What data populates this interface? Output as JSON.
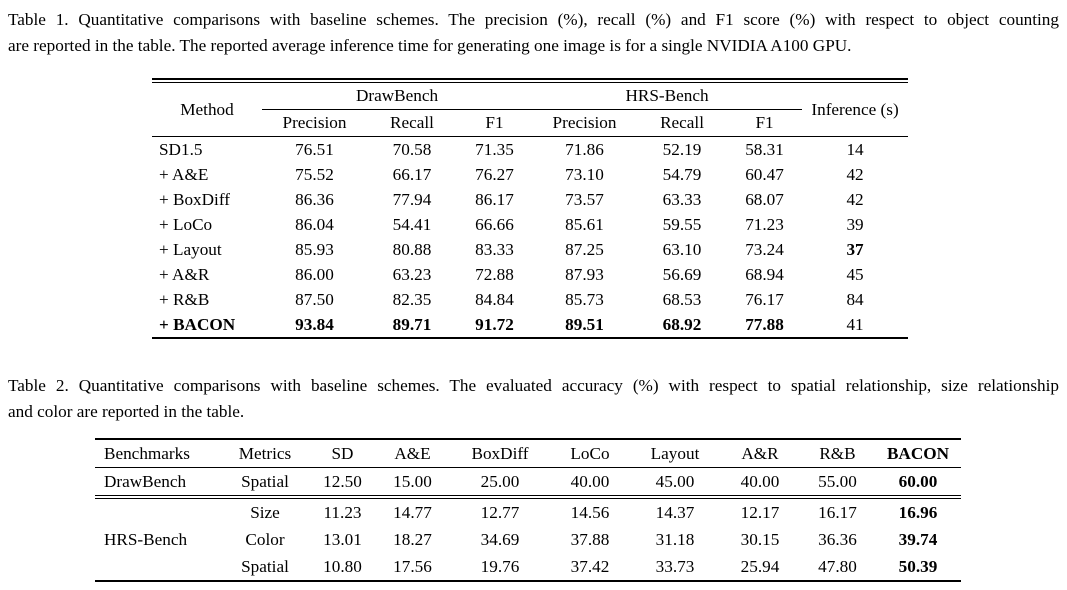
{
  "page": {
    "background": "#ffffff",
    "text_color": "#000000"
  },
  "table1": {
    "caption": {
      "full": "Table 1. Quantitative comparisons with baseline schemes. The precision (%), recall (%) and F1 score (%) with respect to object counting are reported in the table. The reported average inference time for generating one image is for a single NVIDIA A100 GPU.",
      "line1": "Table 1. Quantitative comparisons with baseline schemes. The precision (%), recall (%) and F1 score (%) with respect to object counting",
      "line2": "are reported in the table. The reported average inference time for generating one image is for a single NVIDIA A100 GPU."
    },
    "header": {
      "method": "Method",
      "groups": [
        {
          "label": "DrawBench",
          "cols": [
            "Precision",
            "Recall",
            "F1"
          ]
        },
        {
          "label": "HRS-Bench",
          "cols": [
            "Precision",
            "Recall",
            "F1"
          ]
        }
      ],
      "inference": "Inference (s)"
    },
    "rows": [
      {
        "method": "SD1.5",
        "method_bold": false,
        "values": [
          "76.51",
          "70.58",
          "71.35",
          "71.86",
          "52.19",
          "58.31",
          "14"
        ],
        "bold_values": []
      },
      {
        "method": "+ A&E",
        "method_bold": false,
        "values": [
          "75.52",
          "66.17",
          "76.27",
          "73.10",
          "54.79",
          "60.47",
          "42"
        ],
        "bold_values": []
      },
      {
        "method": "+ BoxDiff",
        "method_bold": false,
        "values": [
          "86.36",
          "77.94",
          "86.17",
          "73.57",
          "63.33",
          "68.07",
          "42"
        ],
        "bold_values": []
      },
      {
        "method": "+ LoCo",
        "method_bold": false,
        "values": [
          "86.04",
          "54.41",
          "66.66",
          "85.61",
          "59.55",
          "71.23",
          "39"
        ],
        "bold_values": []
      },
      {
        "method": "+ Layout",
        "method_bold": false,
        "values": [
          "85.93",
          "80.88",
          "83.33",
          "87.25",
          "63.10",
          "73.24",
          "37"
        ],
        "bold_values": [
          6
        ]
      },
      {
        "method": "+ A&R",
        "method_bold": false,
        "values": [
          "86.00",
          "63.23",
          "72.88",
          "87.93",
          "56.69",
          "68.94",
          "45"
        ],
        "bold_values": []
      },
      {
        "method": "+ R&B",
        "method_bold": false,
        "values": [
          "87.50",
          "82.35",
          "84.84",
          "85.73",
          "68.53",
          "76.17",
          "84"
        ],
        "bold_values": []
      },
      {
        "method": "+ BACON",
        "method_bold": true,
        "values": [
          "93.84",
          "89.71",
          "91.72",
          "89.51",
          "68.92",
          "77.88",
          "41"
        ],
        "bold_values": [
          0,
          1,
          2,
          3,
          4,
          5
        ]
      }
    ]
  },
  "table2": {
    "caption": {
      "full": "Table 2. Quantitative comparisons with baseline schemes. The evaluated accuracy (%) with respect to spatial relationship, size relationship and color are reported in the table.",
      "line1": "Table 2. Quantitative comparisons with baseline schemes. The evaluated accuracy (%) with respect to spatial relationship, size relationship",
      "line2": "and color are reported in the table."
    },
    "columns": [
      "Benchmarks",
      "Metrics",
      "SD",
      "A&E",
      "BoxDiff",
      "LoCo",
      "Layout",
      "A&R",
      "R&B",
      "BACON"
    ],
    "bold_columns": [
      9
    ],
    "bold_last_value": true,
    "sections": [
      {
        "benchmark": "DrawBench",
        "rows": [
          {
            "metric": "Spatial",
            "values": [
              "12.50",
              "15.00",
              "25.00",
              "40.00",
              "45.00",
              "40.00",
              "55.00",
              "60.00"
            ]
          }
        ]
      },
      {
        "benchmark": "HRS-Bench",
        "rows": [
          {
            "metric": "Size",
            "values": [
              "11.23",
              "14.77",
              "12.77",
              "14.56",
              "14.37",
              "12.17",
              "16.17",
              "16.96"
            ]
          },
          {
            "metric": "Color",
            "values": [
              "13.01",
              "18.27",
              "34.69",
              "37.88",
              "31.18",
              "30.15",
              "36.36",
              "39.74"
            ]
          },
          {
            "metric": "Spatial",
            "values": [
              "10.80",
              "17.56",
              "19.76",
              "37.42",
              "33.73",
              "25.94",
              "47.80",
              "50.39"
            ]
          }
        ]
      }
    ]
  }
}
